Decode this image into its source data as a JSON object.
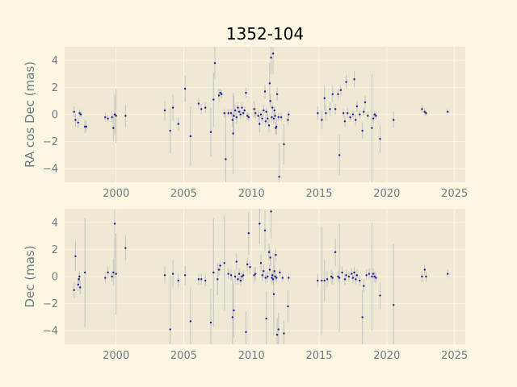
{
  "chart_data": [
    {
      "type": "scatter",
      "title": "1352-104",
      "xlabel": "",
      "ylabel": "RA cos Dec (mas)",
      "xlim": [
        1996.2,
        2025.8
      ],
      "ylim": [
        -5.0,
        5.0
      ],
      "xticks": [
        2000,
        2005,
        2010,
        2015,
        2020,
        2025
      ],
      "yticks": [
        -4,
        -2,
        0,
        2,
        4
      ],
      "grid": true,
      "legend": "none",
      "marker_color": "#1f1f8f",
      "errorbar_color": "#bdbdbd",
      "points": [
        {
          "x": 1996.9,
          "y": 0.2,
          "err": 0.4
        },
        {
          "x": 1997.0,
          "y": -0.4,
          "err": 0.5
        },
        {
          "x": 1997.2,
          "y": -0.6,
          "err": 0.4
        },
        {
          "x": 1997.3,
          "y": 0.1,
          "err": 0.3
        },
        {
          "x": 1997.4,
          "y": 0.0,
          "err": 0.3
        },
        {
          "x": 1997.7,
          "y": -0.9,
          "err": 0.5
        },
        {
          "x": 1997.8,
          "y": -0.9,
          "err": 0.4
        },
        {
          "x": 1999.2,
          "y": -0.2,
          "err": 0.3
        },
        {
          "x": 1999.4,
          "y": -0.3,
          "err": 0.3
        },
        {
          "x": 1999.7,
          "y": -0.2,
          "err": 0.4
        },
        {
          "x": 1999.8,
          "y": -1.0,
          "err": 1.0
        },
        {
          "x": 1999.9,
          "y": 0.0,
          "err": 1.5
        },
        {
          "x": 2000.0,
          "y": -0.1,
          "err": 2.0
        },
        {
          "x": 2000.7,
          "y": -0.1,
          "err": 0.8
        },
        {
          "x": 2003.6,
          "y": 0.3,
          "err": 0.7
        },
        {
          "x": 2004.0,
          "y": -1.2,
          "err": 1.7
        },
        {
          "x": 2004.2,
          "y": 0.5,
          "err": 1.0
        },
        {
          "x": 2004.6,
          "y": -0.7,
          "err": 0.5
        },
        {
          "x": 2005.1,
          "y": 1.9,
          "err": 1.0
        },
        {
          "x": 2005.5,
          "y": -1.6,
          "err": 2.2
        },
        {
          "x": 2006.1,
          "y": 0.8,
          "err": 0.4
        },
        {
          "x": 2006.3,
          "y": 0.4,
          "err": 0.4
        },
        {
          "x": 2006.6,
          "y": 0.5,
          "err": 0.4
        },
        {
          "x": 2007.0,
          "y": -1.3,
          "err": 1.8
        },
        {
          "x": 2007.2,
          "y": 1.1,
          "err": 2.0
        },
        {
          "x": 2007.3,
          "y": 3.8,
          "err": 1.2
        },
        {
          "x": 2007.6,
          "y": 1.4,
          "err": 0.5
        },
        {
          "x": 2007.7,
          "y": 1.6,
          "err": 0.3
        },
        {
          "x": 2007.8,
          "y": 1.5,
          "err": 0.3
        },
        {
          "x": 2008.0,
          "y": 0.1,
          "err": 0.3
        },
        {
          "x": 2008.1,
          "y": -3.3,
          "err": 3.5
        },
        {
          "x": 2008.3,
          "y": 0.1,
          "err": 0.3
        },
        {
          "x": 2008.5,
          "y": 0.1,
          "err": 0.3
        },
        {
          "x": 2008.6,
          "y": -0.4,
          "err": 0.5
        },
        {
          "x": 2008.65,
          "y": -1.4,
          "err": 3.0
        },
        {
          "x": 2008.7,
          "y": -0.1,
          "err": 1.5
        },
        {
          "x": 2008.8,
          "y": 0.3,
          "err": 0.5
        },
        {
          "x": 2008.9,
          "y": -0.2,
          "err": 0.5
        },
        {
          "x": 2009.0,
          "y": 0.5,
          "err": 0.4
        },
        {
          "x": 2009.1,
          "y": 0.2,
          "err": 0.3
        },
        {
          "x": 2009.2,
          "y": 0.0,
          "err": 0.3
        },
        {
          "x": 2009.3,
          "y": 0.5,
          "err": 0.4
        },
        {
          "x": 2009.4,
          "y": 0.1,
          "err": 0.3
        },
        {
          "x": 2009.5,
          "y": 0.3,
          "err": 0.3
        },
        {
          "x": 2009.6,
          "y": 1.6,
          "err": 0.4
        },
        {
          "x": 2009.7,
          "y": -0.1,
          "err": 0.3
        },
        {
          "x": 2009.8,
          "y": -0.2,
          "err": 0.3
        },
        {
          "x": 2010.2,
          "y": 0.4,
          "err": 0.6
        },
        {
          "x": 2010.3,
          "y": 0.1,
          "err": 0.4
        },
        {
          "x": 2010.5,
          "y": -0.1,
          "err": 0.4
        },
        {
          "x": 2010.6,
          "y": -0.7,
          "err": 0.6
        },
        {
          "x": 2010.7,
          "y": 0.0,
          "err": 0.3
        },
        {
          "x": 2010.8,
          "y": -0.3,
          "err": 0.3
        },
        {
          "x": 2010.9,
          "y": 0.3,
          "err": 0.4
        },
        {
          "x": 2011.0,
          "y": 1.7,
          "err": 0.5
        },
        {
          "x": 2011.05,
          "y": -0.5,
          "err": 0.4
        },
        {
          "x": 2011.1,
          "y": 0.2,
          "err": 0.3
        },
        {
          "x": 2011.2,
          "y": -0.3,
          "err": 0.4
        },
        {
          "x": 2011.3,
          "y": -0.8,
          "err": 0.5
        },
        {
          "x": 2011.35,
          "y": 2.3,
          "err": 1.5
        },
        {
          "x": 2011.4,
          "y": 1.0,
          "err": 0.5
        },
        {
          "x": 2011.45,
          "y": 4.2,
          "err": 1.2
        },
        {
          "x": 2011.5,
          "y": -0.2,
          "err": 0.3
        },
        {
          "x": 2011.55,
          "y": 0.5,
          "err": 0.4
        },
        {
          "x": 2011.6,
          "y": 4.5,
          "err": 1.5
        },
        {
          "x": 2011.65,
          "y": -0.3,
          "err": 0.4
        },
        {
          "x": 2011.7,
          "y": 0.3,
          "err": 0.3
        },
        {
          "x": 2011.75,
          "y": -0.1,
          "err": 0.3
        },
        {
          "x": 2011.8,
          "y": -1.0,
          "err": 0.5
        },
        {
          "x": 2011.85,
          "y": -0.9,
          "err": 0.6
        },
        {
          "x": 2011.9,
          "y": 1.5,
          "err": 0.5
        },
        {
          "x": 2012.0,
          "y": -0.2,
          "err": 0.3
        },
        {
          "x": 2012.05,
          "y": -4.6,
          "err": 2.5
        },
        {
          "x": 2012.2,
          "y": -0.2,
          "err": 0.3
        },
        {
          "x": 2012.4,
          "y": -2.2,
          "err": 1.5
        },
        {
          "x": 2012.7,
          "y": -0.4,
          "err": 0.4
        },
        {
          "x": 2012.75,
          "y": 0.0,
          "err": 0.3
        },
        {
          "x": 2014.9,
          "y": 0.1,
          "err": 0.5
        },
        {
          "x": 2015.2,
          "y": -0.4,
          "err": 0.7
        },
        {
          "x": 2015.4,
          "y": 1.2,
          "err": 0.9
        },
        {
          "x": 2015.5,
          "y": 0.1,
          "err": 0.6
        },
        {
          "x": 2015.8,
          "y": 0.4,
          "err": 0.5
        },
        {
          "x": 2016.0,
          "y": 1.5,
          "err": 0.6
        },
        {
          "x": 2016.2,
          "y": 0.4,
          "err": 0.4
        },
        {
          "x": 2016.4,
          "y": 1.5,
          "err": 0.4
        },
        {
          "x": 2016.5,
          "y": -3.0,
          "err": 1.5
        },
        {
          "x": 2016.6,
          "y": 1.8,
          "err": 0.4
        },
        {
          "x": 2016.8,
          "y": 0.1,
          "err": 0.3
        },
        {
          "x": 2016.9,
          "y": -0.5,
          "err": 0.4
        },
        {
          "x": 2017.0,
          "y": 2.4,
          "err": 0.5
        },
        {
          "x": 2017.1,
          "y": 0.1,
          "err": 0.4
        },
        {
          "x": 2017.3,
          "y": -0.2,
          "err": 0.3
        },
        {
          "x": 2017.5,
          "y": 0.0,
          "err": 0.3
        },
        {
          "x": 2017.6,
          "y": 2.6,
          "err": 0.6
        },
        {
          "x": 2017.7,
          "y": -0.4,
          "err": 0.4
        },
        {
          "x": 2017.8,
          "y": 0.6,
          "err": 0.4
        },
        {
          "x": 2018.0,
          "y": 0.0,
          "err": 0.3
        },
        {
          "x": 2018.2,
          "y": -1.2,
          "err": 0.6
        },
        {
          "x": 2018.3,
          "y": 0.2,
          "err": 0.3
        },
        {
          "x": 2018.4,
          "y": 0.9,
          "err": 0.5
        },
        {
          "x": 2018.6,
          "y": -0.1,
          "err": 0.3
        },
        {
          "x": 2018.9,
          "y": -1.0,
          "err": 4.0
        },
        {
          "x": 2019.0,
          "y": -0.3,
          "err": 0.3
        },
        {
          "x": 2019.1,
          "y": 0.0,
          "err": 0.3
        },
        {
          "x": 2019.2,
          "y": -0.1,
          "err": 0.3
        },
        {
          "x": 2019.5,
          "y": -1.8,
          "err": 1.0
        },
        {
          "x": 2020.5,
          "y": -0.4,
          "err": 0.6
        },
        {
          "x": 2022.6,
          "y": 0.4,
          "err": 0.3
        },
        {
          "x": 2022.8,
          "y": 0.2,
          "err": 0.3
        },
        {
          "x": 2022.9,
          "y": 0.1,
          "err": 0.2
        },
        {
          "x": 2024.5,
          "y": 0.2,
          "err": 0.2
        }
      ]
    },
    {
      "type": "scatter",
      "title": "",
      "xlabel": "",
      "ylabel": "Dec (mas)",
      "xlim": [
        1996.2,
        2025.8
      ],
      "ylim": [
        -5.0,
        5.0
      ],
      "xticks": [
        2000,
        2005,
        2010,
        2015,
        2020,
        2025
      ],
      "yticks": [
        -4,
        -2,
        0,
        2,
        4
      ],
      "grid": true,
      "legend": "none",
      "marker_color": "#1f1f8f",
      "errorbar_color": "#bdbdbd",
      "points": [
        {
          "x": 1996.9,
          "y": -1.0,
          "err": 0.6
        },
        {
          "x": 1997.0,
          "y": 1.5,
          "err": 1.1
        },
        {
          "x": 1997.2,
          "y": -0.6,
          "err": 0.5
        },
        {
          "x": 1997.25,
          "y": -0.2,
          "err": 0.4
        },
        {
          "x": 1997.3,
          "y": 0.0,
          "err": 0.4
        },
        {
          "x": 1997.35,
          "y": -0.8,
          "err": 0.5
        },
        {
          "x": 1997.7,
          "y": 0.3,
          "err": 4.0
        },
        {
          "x": 1999.2,
          "y": -0.1,
          "err": 0.4
        },
        {
          "x": 1999.4,
          "y": 0.3,
          "err": 0.4
        },
        {
          "x": 1999.7,
          "y": 0.0,
          "err": 0.4
        },
        {
          "x": 1999.8,
          "y": 0.3,
          "err": 1.0
        },
        {
          "x": 1999.9,
          "y": 3.9,
          "err": 4.0
        },
        {
          "x": 2000.0,
          "y": 0.2,
          "err": 3.0
        },
        {
          "x": 2000.7,
          "y": 2.1,
          "err": 0.9
        },
        {
          "x": 2003.6,
          "y": 0.1,
          "err": 0.6
        },
        {
          "x": 2004.0,
          "y": -3.9,
          "err": 4.0
        },
        {
          "x": 2004.2,
          "y": 0.2,
          "err": 1.0
        },
        {
          "x": 2004.6,
          "y": -0.3,
          "err": 0.5
        },
        {
          "x": 2005.1,
          "y": 0.1,
          "err": 0.7
        },
        {
          "x": 2005.5,
          "y": -3.3,
          "err": 2.5
        },
        {
          "x": 2006.1,
          "y": -0.2,
          "err": 0.4
        },
        {
          "x": 2006.3,
          "y": -0.2,
          "err": 0.4
        },
        {
          "x": 2006.6,
          "y": -0.3,
          "err": 0.4
        },
        {
          "x": 2007.0,
          "y": -3.4,
          "err": 2.5
        },
        {
          "x": 2007.2,
          "y": 0.3,
          "err": 4.0
        },
        {
          "x": 2007.5,
          "y": -0.2,
          "err": 1.2
        },
        {
          "x": 2007.6,
          "y": 0.5,
          "err": 0.5
        },
        {
          "x": 2007.7,
          "y": 0.8,
          "err": 0.4
        },
        {
          "x": 2008.0,
          "y": 1.0,
          "err": 3.5
        },
        {
          "x": 2008.3,
          "y": 0.2,
          "err": 0.4
        },
        {
          "x": 2008.5,
          "y": 0.1,
          "err": 0.4
        },
        {
          "x": 2008.6,
          "y": -3.0,
          "err": 3.0
        },
        {
          "x": 2008.7,
          "y": -2.5,
          "err": 2.0
        },
        {
          "x": 2008.8,
          "y": 0.0,
          "err": 0.5
        },
        {
          "x": 2008.9,
          "y": 1.1,
          "err": 0.6
        },
        {
          "x": 2009.0,
          "y": -0.2,
          "err": 0.4
        },
        {
          "x": 2009.1,
          "y": 0.2,
          "err": 0.4
        },
        {
          "x": 2009.2,
          "y": -0.3,
          "err": 0.4
        },
        {
          "x": 2009.3,
          "y": 0.0,
          "err": 0.4
        },
        {
          "x": 2009.4,
          "y": 0.1,
          "err": 0.4
        },
        {
          "x": 2009.6,
          "y": -4.1,
          "err": 1.5
        },
        {
          "x": 2009.7,
          "y": 0.9,
          "err": 0.5
        },
        {
          "x": 2009.8,
          "y": 3.2,
          "err": 1.6
        },
        {
          "x": 2009.9,
          "y": 0.7,
          "err": 0.5
        },
        {
          "x": 2010.2,
          "y": 0.1,
          "err": 0.6
        },
        {
          "x": 2010.3,
          "y": 0.2,
          "err": 0.5
        },
        {
          "x": 2010.6,
          "y": 3.9,
          "err": 1.5
        },
        {
          "x": 2010.7,
          "y": 1.0,
          "err": 0.6
        },
        {
          "x": 2010.8,
          "y": 0.1,
          "err": 0.4
        },
        {
          "x": 2010.9,
          "y": 0.4,
          "err": 0.5
        },
        {
          "x": 2011.0,
          "y": 3.4,
          "err": 1.5
        },
        {
          "x": 2011.05,
          "y": -0.1,
          "err": 0.4
        },
        {
          "x": 2011.1,
          "y": -3.1,
          "err": 2.0
        },
        {
          "x": 2011.2,
          "y": 0.0,
          "err": 0.4
        },
        {
          "x": 2011.3,
          "y": 1.8,
          "err": 0.6
        },
        {
          "x": 2011.35,
          "y": 0.5,
          "err": 0.4
        },
        {
          "x": 2011.4,
          "y": 1.4,
          "err": 0.6
        },
        {
          "x": 2011.45,
          "y": 4.8,
          "err": 2.0
        },
        {
          "x": 2011.5,
          "y": -0.1,
          "err": 0.4
        },
        {
          "x": 2011.55,
          "y": 0.1,
          "err": 0.4
        },
        {
          "x": 2011.6,
          "y": -0.2,
          "err": 0.4
        },
        {
          "x": 2011.65,
          "y": -1.3,
          "err": 3.0
        },
        {
          "x": 2011.7,
          "y": 0.4,
          "err": 0.4
        },
        {
          "x": 2011.75,
          "y": 0.0,
          "err": 0.3
        },
        {
          "x": 2011.8,
          "y": 1.6,
          "err": 0.5
        },
        {
          "x": 2011.85,
          "y": -0.1,
          "err": 0.3
        },
        {
          "x": 2011.9,
          "y": -4.3,
          "err": 1.2
        },
        {
          "x": 2012.0,
          "y": -3.9,
          "err": 1.2
        },
        {
          "x": 2012.1,
          "y": 0.3,
          "err": 0.3
        },
        {
          "x": 2012.3,
          "y": -0.1,
          "err": 0.3
        },
        {
          "x": 2012.4,
          "y": -4.2,
          "err": 1.0
        },
        {
          "x": 2012.7,
          "y": -2.2,
          "err": 1.2
        },
        {
          "x": 2012.75,
          "y": -0.1,
          "err": 0.3
        },
        {
          "x": 2014.9,
          "y": -0.3,
          "err": 0.5
        },
        {
          "x": 2015.2,
          "y": -0.3,
          "err": 4.0
        },
        {
          "x": 2015.4,
          "y": -0.3,
          "err": 1.5
        },
        {
          "x": 2015.6,
          "y": -0.2,
          "err": 0.6
        },
        {
          "x": 2015.9,
          "y": 0.0,
          "err": 0.5
        },
        {
          "x": 2016.0,
          "y": -0.1,
          "err": 0.5
        },
        {
          "x": 2016.2,
          "y": 1.8,
          "err": 1.0
        },
        {
          "x": 2016.4,
          "y": 0.0,
          "err": 0.4
        },
        {
          "x": 2016.5,
          "y": -0.1,
          "err": 4.0
        },
        {
          "x": 2016.7,
          "y": 0.3,
          "err": 0.4
        },
        {
          "x": 2016.9,
          "y": -0.2,
          "err": 0.4
        },
        {
          "x": 2017.0,
          "y": 0.1,
          "err": 0.4
        },
        {
          "x": 2017.2,
          "y": 0.0,
          "err": 0.4
        },
        {
          "x": 2017.4,
          "y": 0.2,
          "err": 0.4
        },
        {
          "x": 2017.5,
          "y": -0.1,
          "err": 0.4
        },
        {
          "x": 2017.6,
          "y": 0.3,
          "err": 0.4
        },
        {
          "x": 2017.7,
          "y": -0.2,
          "err": 0.4
        },
        {
          "x": 2017.8,
          "y": 0.1,
          "err": 0.4
        },
        {
          "x": 2018.0,
          "y": -0.3,
          "err": 0.4
        },
        {
          "x": 2018.2,
          "y": -3.0,
          "err": 2.0
        },
        {
          "x": 2018.3,
          "y": -0.7,
          "err": 0.5
        },
        {
          "x": 2018.5,
          "y": 0.1,
          "err": 0.4
        },
        {
          "x": 2018.7,
          "y": 0.2,
          "err": 0.4
        },
        {
          "x": 2018.9,
          "y": 0.0,
          "err": 4.0
        },
        {
          "x": 2019.0,
          "y": 0.2,
          "err": 0.4
        },
        {
          "x": 2019.1,
          "y": 0.0,
          "err": 0.4
        },
        {
          "x": 2019.2,
          "y": -0.1,
          "err": 0.4
        },
        {
          "x": 2019.5,
          "y": -1.4,
          "err": 1.0
        },
        {
          "x": 2020.5,
          "y": -2.1,
          "err": 4.5
        },
        {
          "x": 2022.6,
          "y": 0.0,
          "err": 0.4
        },
        {
          "x": 2022.8,
          "y": 0.5,
          "err": 0.4
        },
        {
          "x": 2022.9,
          "y": 0.0,
          "err": 0.4
        },
        {
          "x": 2024.5,
          "y": 0.2,
          "err": 0.3
        }
      ]
    }
  ],
  "colors": {
    "figure_background": "#fdf6e3",
    "axes_background": "#eee8d5",
    "grid": "#fdf6e3",
    "tick_text": "#6c7a7f",
    "title_text": "#000000"
  }
}
